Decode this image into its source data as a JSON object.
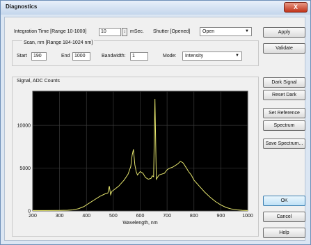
{
  "window": {
    "title": "Diagnostics",
    "close_label": "X"
  },
  "integration": {
    "label": "Integration Time [Range 10-1000]",
    "value": "10",
    "unit": "mSec."
  },
  "shutter": {
    "label": "Shutter [Opened]",
    "selected": "Open"
  },
  "scan": {
    "group_label": "Scan, nm [Range 184-1024 nm]",
    "start_label": "Start",
    "start_value": "190",
    "end_label": "End",
    "end_value": "1000",
    "bandwidth_label": "Bandwidth:",
    "bandwidth_value": "1",
    "mode_label": "Mode:",
    "mode_selected": "Intensity"
  },
  "signal_group_label": "Signal, ADC Counts",
  "buttons": {
    "apply": "Apply",
    "validate": "Validate",
    "dark_signal": "Dark Signal",
    "reset_dark": "Reset Dark",
    "set_reference": "Set Reference",
    "spectrum": "Spectrum",
    "save_spectrum": "Save Spectrum...",
    "ok": "OK",
    "cancel": "Cancel",
    "help": "Help"
  },
  "chart_data": {
    "type": "line",
    "xlabel": "Wavelength, nm",
    "ylabel": "",
    "xlim": [
      200,
      1000
    ],
    "ylim": [
      0,
      14000
    ],
    "x_ticks": [
      200,
      300,
      400,
      500,
      600,
      700,
      800,
      900,
      1000
    ],
    "y_ticks": [
      0,
      5000,
      10000
    ],
    "y_tick_labels": [
      "0",
      "5000",
      "10000"
    ],
    "grid": true,
    "background": "#000000",
    "line_color": "#e6e66e",
    "series": [
      {
        "x": [
          200,
          250,
          300,
          330,
          350,
          370,
          390,
          410,
          430,
          450,
          470,
          480,
          485,
          490,
          495,
          500,
          520,
          540,
          555,
          565,
          570,
          575,
          580,
          585,
          590,
          600,
          610,
          620,
          630,
          640,
          645,
          650,
          655,
          660,
          670,
          680,
          690,
          700,
          710,
          720,
          730,
          740,
          750,
          760,
          770,
          780,
          790,
          800,
          820,
          840,
          860,
          880,
          900,
          920,
          940,
          960,
          980,
          1000
        ],
        "y": [
          50,
          50,
          60,
          80,
          120,
          250,
          500,
          900,
          1300,
          1700,
          2000,
          2100,
          2900,
          1900,
          2300,
          2400,
          2900,
          3600,
          4300,
          5200,
          6500,
          7200,
          5400,
          4600,
          4200,
          4600,
          4400,
          3900,
          3700,
          3800,
          4100,
          4000,
          13100,
          3700,
          4200,
          4300,
          4400,
          4800,
          5000,
          5100,
          5300,
          5500,
          5800,
          5600,
          5100,
          4600,
          4200,
          3600,
          2900,
          2200,
          1600,
          1100,
          700,
          400,
          220,
          120,
          70,
          50
        ]
      }
    ]
  }
}
